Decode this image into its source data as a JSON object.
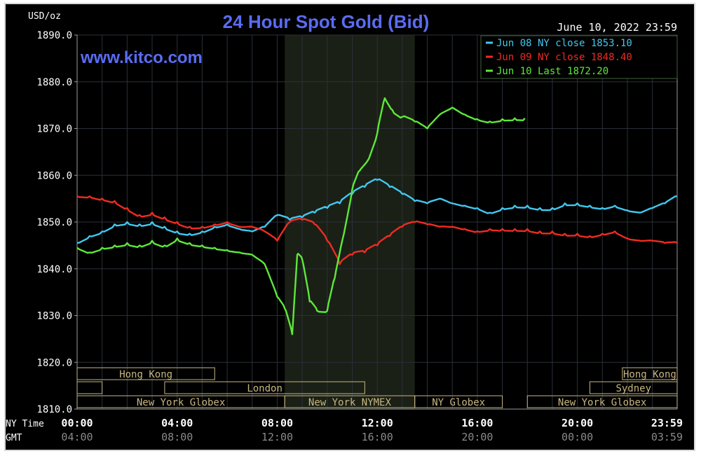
{
  "chart_data": {
    "type": "line",
    "title": "24 Hour Spot Gold (Bid)",
    "unit_label": "USD/oz",
    "watermark": "www.kitco.com",
    "date_label": "June 10, 2022 23:59",
    "ylim": [
      1810,
      1890
    ],
    "y_ticks": [
      "1890.0",
      "1880.0",
      "1870.0",
      "1860.0",
      "1850.0",
      "1840.0",
      "1830.0",
      "1820.0",
      "1810.0"
    ],
    "x_tick_rows": [
      {
        "label": "NY Time",
        "ticks": [
          "00:00",
          "04:00",
          "08:00",
          "12:00",
          "16:00",
          "20:00",
          "23:59"
        ]
      },
      {
        "label": "GMT",
        "ticks": [
          "04:00",
          "08:00",
          "12:00",
          "16:00",
          "20:00",
          "00:00",
          "03:59"
        ]
      }
    ],
    "legend": [
      {
        "text": "Jun 08 NY close 1853.10",
        "color": "#41c8f0"
      },
      {
        "text": "Jun 09 NY close 1848.40",
        "color": "#f02b21"
      },
      {
        "text": "Jun 10 Last 1872.20",
        "color": "#5ee83a"
      }
    ],
    "market_sessions": [
      {
        "label": "Hong Kong",
        "start": 0,
        "end": 5.5
      },
      {
        "label": "London",
        "start": 3.5,
        "end": 11.5
      },
      {
        "label": "New York Globex",
        "start": 0,
        "end": 8.3
      },
      {
        "label": "New York NYMEX",
        "start": 8.3,
        "end": 13.5
      },
      {
        "label": "NY Globex",
        "start": 13.5,
        "end": 17.0
      },
      {
        "label": "Hong Kong",
        "start": 21.8,
        "end": 23.99
      },
      {
        "label": "Sydney",
        "start": 20.5,
        "end": 23.99
      },
      {
        "label": "New York Globex",
        "start": 18.0,
        "end": 23.99
      }
    ],
    "series": [
      {
        "name": "Jun 08",
        "color": "#41c8f0",
        "x": [
          0,
          0.5,
          1,
          1.5,
          2,
          2.5,
          3,
          3.5,
          4,
          4.5,
          5,
          5.5,
          6,
          6.5,
          7,
          7.5,
          8,
          8.5,
          9,
          9.5,
          10,
          10.5,
          11,
          11.5,
          12,
          12.5,
          13,
          13.5,
          14,
          14.5,
          15,
          15.5,
          16,
          16.5,
          17,
          17.5,
          18,
          18.5,
          19,
          19.5,
          20,
          20.5,
          21,
          21.5,
          22,
          22.5,
          23,
          23.5,
          23.99
        ],
        "y": [
          1845.5,
          1847.0,
          1848.0,
          1849.5,
          1850.0,
          1849.5,
          1850.0,
          1849.0,
          1848.0,
          1847.5,
          1848.0,
          1849.0,
          1849.5,
          1848.5,
          1848.0,
          1849.0,
          1851.5,
          1850.5,
          1851.0,
          1852.0,
          1853.0,
          1854.0,
          1856.0,
          1857.5,
          1859.0,
          1857.5,
          1856.0,
          1854.5,
          1854.0,
          1855.0,
          1854.0,
          1853.5,
          1853.0,
          1852.0,
          1853.0,
          1853.5,
          1853.5,
          1853.0,
          1853.0,
          1854.0,
          1854.0,
          1853.5,
          1853.0,
          1853.5,
          1852.5,
          1852.0,
          1853.0,
          1854.0,
          1855.5
        ]
      },
      {
        "name": "Jun 09",
        "color": "#f02b21",
        "x": [
          0,
          0.5,
          1,
          1.5,
          2,
          2.5,
          3,
          3.5,
          4,
          4.5,
          5,
          5.5,
          6,
          6.5,
          7,
          7.5,
          8,
          8.5,
          9,
          9.5,
          10,
          10.5,
          11,
          11.5,
          12,
          12.5,
          13,
          13.5,
          14,
          14.5,
          15,
          15.5,
          16,
          16.5,
          17,
          17.5,
          18,
          18.5,
          19,
          19.5,
          20,
          20.5,
          21,
          21.5,
          22,
          22.5,
          23,
          23.5,
          23.99
        ],
        "y": [
          1855.5,
          1855.5,
          1855.0,
          1854.5,
          1853.0,
          1851.5,
          1852.0,
          1851.0,
          1850.0,
          1849.0,
          1849.0,
          1849.5,
          1850.0,
          1849.0,
          1849.0,
          1848.0,
          1846.0,
          1850.0,
          1850.5,
          1849.5,
          1846.0,
          1841.0,
          1843.0,
          1843.5,
          1845.0,
          1847.0,
          1849.0,
          1850.0,
          1849.5,
          1849.0,
          1849.0,
          1848.5,
          1848.0,
          1848.5,
          1848.5,
          1848.5,
          1848.5,
          1848.0,
          1848.0,
          1847.5,
          1847.5,
          1847.0,
          1847.5,
          1848.0,
          1846.5,
          1846.0,
          1846.0,
          1845.5,
          1845.5
        ]
      },
      {
        "name": "Jun 10",
        "color": "#5ee83a",
        "x": [
          0,
          0.5,
          1,
          1.5,
          2,
          2.5,
          3,
          3.5,
          4,
          4.5,
          5,
          5.5,
          6,
          6.5,
          7,
          7.5,
          8,
          8.3,
          8.6,
          8.8,
          9,
          9.3,
          9.6,
          10,
          10.3,
          10.6,
          11,
          11.3,
          11.6,
          12,
          12.3,
          12.6,
          13,
          13.5,
          14,
          14.5,
          15,
          15.5,
          16,
          16.5,
          17,
          17.5,
          17.9
        ],
        "y": [
          1844.5,
          1843.5,
          1844.5,
          1845.0,
          1845.5,
          1845.0,
          1846.0,
          1845.0,
          1846.5,
          1845.5,
          1845.0,
          1844.5,
          1844.0,
          1843.5,
          1843.0,
          1841.0,
          1834.0,
          1831.5,
          1826.0,
          1843.0,
          1842.0,
          1833.0,
          1831.0,
          1831.0,
          1838.0,
          1846.0,
          1857.0,
          1861.0,
          1863.0,
          1869.0,
          1876.5,
          1874.0,
          1872.5,
          1871.5,
          1870.0,
          1873.0,
          1874.5,
          1873.0,
          1872.0,
          1871.5,
          1872.0,
          1872.2,
          1872.2
        ]
      }
    ]
  }
}
